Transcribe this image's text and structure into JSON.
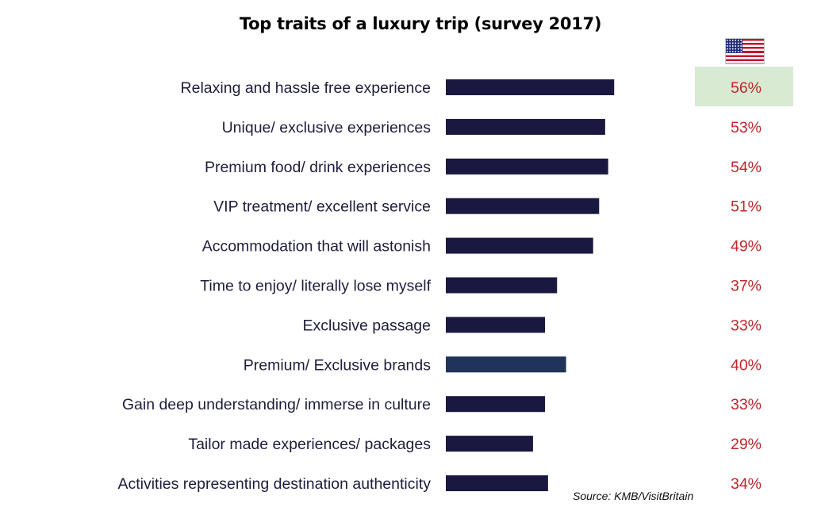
{
  "title": "Top traits of a luxury trip (survey 2017)",
  "source": "Source: KMB/VisitBritain",
  "flag_icon": "us-flag-icon",
  "colors": {
    "bar": "#1a1840",
    "bar_alt": "#1f3458",
    "percent_text": "#c0272d",
    "highlight_bg": "#d8ead2"
  },
  "chart_data": {
    "type": "bar",
    "orientation": "horizontal",
    "title": "Top traits of a luxury trip (survey 2017)",
    "categories": [
      "Relaxing and hassle free experience",
      "Unique/ exclusive experiences",
      "Premium food/ drink experiences",
      "VIP treatment/ excellent service",
      "Accommodation that will astonish",
      "Time to enjoy/ literally lose myself",
      "Exclusive passage",
      "Premium/ Exclusive brands",
      "Gain deep understanding/ immerse in culture",
      "Tailor made experiences/ packages",
      "Activities representing destination authenticity"
    ],
    "values": [
      56,
      53,
      54,
      51,
      49,
      37,
      33,
      40,
      33,
      29,
      34
    ],
    "value_labels": [
      "56%",
      "53%",
      "54%",
      "51%",
      "49%",
      "37%",
      "33%",
      "40%",
      "33%",
      "29%",
      "34%"
    ],
    "highlighted_index": 0,
    "grid": false,
    "legend": "none"
  }
}
